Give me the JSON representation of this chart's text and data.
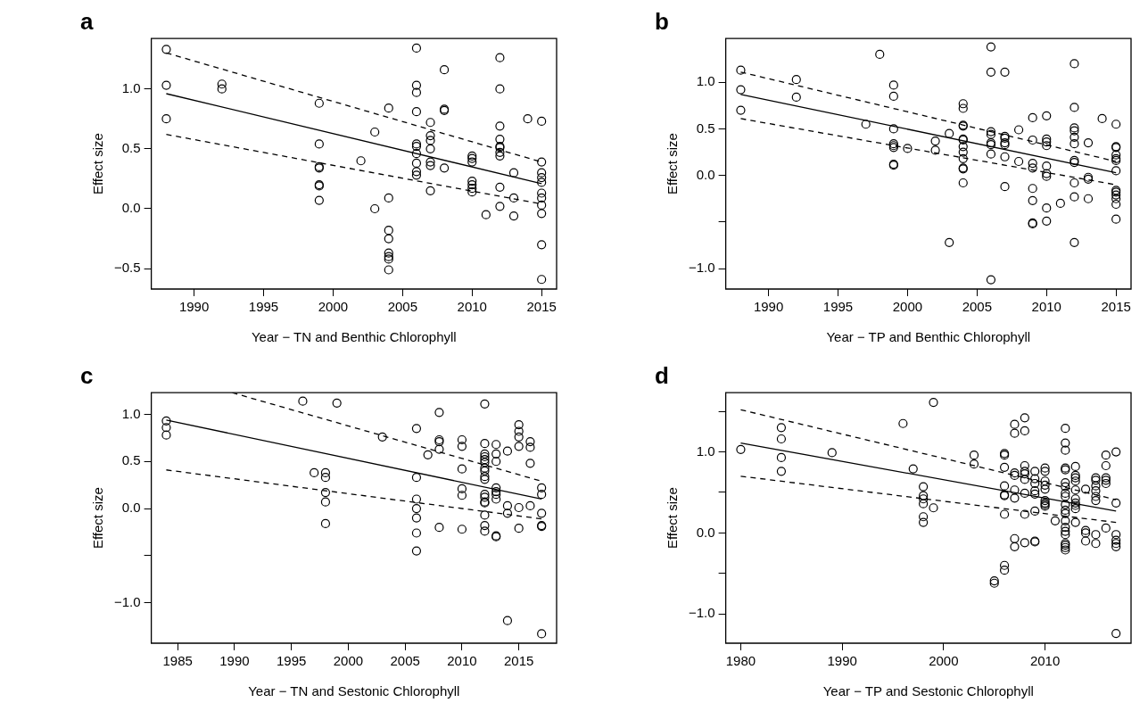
{
  "chart_data": [
    {
      "type": "scatter",
      "title": "a",
      "xlabel": "Year − TN and Benthic Chlorophyll",
      "ylabel": "Effect size",
      "xlim": [
        1986.92,
        2016.08
      ],
      "ylim": [
        -0.67,
        1.42
      ],
      "xticks": [
        1990,
        1995,
        2000,
        2005,
        2010,
        2015
      ],
      "yticks": [
        {
          "value": -0.5,
          "label": "−0.5"
        },
        {
          "value": 0,
          "label": "0.0"
        },
        {
          "value": 0.5,
          "label": "0.5"
        },
        {
          "value": 1,
          "label": "1.0"
        }
      ],
      "grid": false,
      "legend": false,
      "marker": "circle",
      "series": [
        {
          "color": "#000000",
          "x": [
            1988,
            1988,
            1988,
            1992,
            1992,
            1999,
            1999,
            1999,
            1999,
            1999,
            1999,
            1999,
            2002,
            2003,
            2003,
            2004,
            2004,
            2004,
            2004,
            2004,
            2004,
            2004,
            2004,
            2006,
            2006,
            2006,
            2006,
            2006,
            2006,
            2006,
            2006,
            2006,
            2006,
            2007,
            2007,
            2007,
            2007,
            2007,
            2007,
            2007,
            2008,
            2008,
            2008,
            2008,
            2010,
            2010,
            2010,
            2010,
            2010,
            2010,
            2010,
            2011,
            2012,
            2012,
            2012,
            2012,
            2012,
            2012,
            2012,
            2012,
            2012,
            2012,
            2013,
            2013,
            2013,
            2014,
            2015,
            2015,
            2015,
            2015,
            2015,
            2015,
            2015,
            2015,
            2015,
            2015,
            2015
          ],
          "values": [
            1.33,
            1.03,
            0.75,
            1.04,
            1.0,
            0.88,
            0.54,
            0.35,
            0.34,
            0.2,
            0.19,
            0.07,
            0.4,
            0.64,
            0.0,
            0.84,
            0.09,
            -0.18,
            -0.25,
            -0.37,
            -0.4,
            -0.42,
            -0.51,
            1.34,
            1.03,
            0.97,
            0.81,
            0.54,
            0.52,
            0.46,
            0.38,
            0.31,
            0.28,
            0.72,
            0.61,
            0.57,
            0.5,
            0.39,
            0.36,
            0.15,
            1.16,
            0.83,
            0.82,
            0.34,
            0.44,
            0.42,
            0.39,
            0.23,
            0.2,
            0.17,
            0.14,
            -0.05,
            1.26,
            1.0,
            0.69,
            0.58,
            0.52,
            0.51,
            0.47,
            0.44,
            0.18,
            0.02,
            0.3,
            0.09,
            -0.06,
            0.75,
            0.73,
            0.39,
            0.3,
            0.26,
            0.22,
            0.13,
            0.09,
            0.03,
            -0.04,
            -0.3,
            -0.59
          ]
        },
        {
          "type": "line",
          "color": "#000000",
          "line_style": "solid",
          "marker": "none",
          "x": [
            1988,
            2015
          ],
          "values": [
            0.96,
            0.21
          ]
        },
        {
          "type": "line",
          "color": "#000000",
          "line_style": "dashed",
          "marker": "none",
          "x": [
            1988,
            2015
          ],
          "values": [
            1.3,
            0.39
          ]
        },
        {
          "type": "line",
          "color": "#000000",
          "line_style": "dashed",
          "marker": "none",
          "x": [
            1988,
            2015
          ],
          "values": [
            0.62,
            0.04
          ]
        }
      ]
    },
    {
      "type": "scatter",
      "title": "b",
      "xlabel": "Year − TP and Benthic Chlorophyll",
      "ylabel": "Effect size",
      "xlim": [
        1986.92,
        2016.08
      ],
      "ylim": [
        -1.22,
        1.47
      ],
      "xticks": [
        1990,
        1995,
        2000,
        2005,
        2010,
        2015
      ],
      "yticks": [
        {
          "value": -1,
          "label": "−1.0"
        },
        {
          "value": -0.5,
          "label": null
        },
        {
          "value": 0,
          "label": "0.0"
        },
        {
          "value": 0.5,
          "label": "0.5"
        },
        {
          "value": 1,
          "label": "1.0"
        }
      ],
      "grid": false,
      "legend": false,
      "marker": "circle",
      "series": [
        {
          "color": "#000000",
          "x": [
            1988,
            1988,
            1988,
            1992,
            1992,
            1997,
            1998,
            1999,
            1999,
            1999,
            1999,
            1999,
            1999,
            1999,
            1999,
            2000,
            2002,
            2002,
            2003,
            2003,
            2004,
            2004,
            2004,
            2004,
            2004,
            2004,
            2004,
            2004,
            2004,
            2004,
            2004,
            2004,
            2006,
            2006,
            2006,
            2006,
            2006,
            2006,
            2006,
            2006,
            2007,
            2007,
            2007,
            2007,
            2007,
            2007,
            2007,
            2008,
            2008,
            2009,
            2009,
            2009,
            2009,
            2009,
            2009,
            2009,
            2009,
            2010,
            2010,
            2010,
            2010,
            2010,
            2010,
            2010,
            2010,
            2010,
            2011,
            2012,
            2012,
            2012,
            2012,
            2012,
            2012,
            2012,
            2012,
            2012,
            2012,
            2012,
            2013,
            2013,
            2013,
            2013,
            2014,
            2015,
            2015,
            2015,
            2015,
            2015,
            2015,
            2015,
            2015,
            2015,
            2015,
            2015,
            2015,
            2015
          ],
          "values": [
            1.13,
            0.92,
            0.7,
            1.03,
            0.84,
            0.55,
            1.3,
            0.97,
            0.85,
            0.5,
            0.34,
            0.32,
            0.3,
            0.12,
            0.11,
            0.29,
            0.37,
            0.27,
            0.45,
            -0.72,
            0.77,
            0.72,
            0.54,
            0.53,
            0.39,
            0.38,
            0.31,
            0.25,
            0.18,
            0.08,
            0.07,
            -0.08,
            1.38,
            1.11,
            0.47,
            0.44,
            0.35,
            0.33,
            0.23,
            -1.12,
            1.11,
            0.42,
            0.4,
            0.35,
            0.33,
            0.2,
            -0.12,
            0.49,
            0.15,
            0.62,
            0.38,
            0.13,
            0.08,
            -0.14,
            -0.27,
            -0.51,
            -0.52,
            0.64,
            0.39,
            0.36,
            0.32,
            0.1,
            0.02,
            -0.01,
            -0.35,
            -0.49,
            -0.3,
            1.2,
            0.73,
            0.51,
            0.48,
            0.41,
            0.34,
            0.16,
            0.14,
            -0.08,
            -0.23,
            -0.72,
            0.35,
            -0.02,
            -0.04,
            -0.25,
            0.61,
            0.55,
            0.31,
            0.3,
            0.22,
            0.18,
            0.16,
            0.05,
            -0.16,
            -0.18,
            -0.21,
            -0.25,
            -0.31,
            -0.47
          ]
        },
        {
          "type": "line",
          "color": "#000000",
          "line_style": "solid",
          "marker": "none",
          "x": [
            1988,
            2015
          ],
          "values": [
            0.87,
            0.03
          ]
        },
        {
          "type": "line",
          "color": "#000000",
          "line_style": "dashed",
          "marker": "none",
          "x": [
            1988,
            2015
          ],
          "values": [
            1.11,
            0.15
          ]
        },
        {
          "type": "line",
          "color": "#000000",
          "line_style": "dashed",
          "marker": "none",
          "x": [
            1988,
            2015
          ],
          "values": [
            0.61,
            -0.1
          ]
        }
      ]
    },
    {
      "type": "scatter",
      "title": "c",
      "xlabel": "Year − TN and Sestonic Chlorophyll",
      "ylabel": "Effect size",
      "xlim": [
        1982.68,
        2018.32
      ],
      "ylim": [
        -1.43,
        1.23
      ],
      "xticks": [
        1985,
        1990,
        1995,
        2000,
        2005,
        2010,
        2015
      ],
      "yticks": [
        {
          "value": -1,
          "label": "−1.0"
        },
        {
          "value": -0.5,
          "label": null
        },
        {
          "value": 0,
          "label": "0.0"
        },
        {
          "value": 0.5,
          "label": "0.5"
        },
        {
          "value": 1,
          "label": "1.0"
        }
      ],
      "grid": false,
      "legend": false,
      "marker": "circle",
      "series": [
        {
          "color": "#000000",
          "x": [
            1984,
            1984,
            1984,
            1996,
            1997,
            1998,
            1998,
            1998,
            1998,
            1998,
            1999,
            2003,
            2006,
            2006,
            2006,
            2006,
            2006,
            2006,
            2006,
            2007,
            2008,
            2008,
            2008,
            2008,
            2008,
            2010,
            2010,
            2010,
            2010,
            2010,
            2010,
            2012,
            2012,
            2012,
            2012,
            2012,
            2012,
            2012,
            2012,
            2012,
            2012,
            2012,
            2012,
            2012,
            2012,
            2012,
            2012,
            2012,
            2013,
            2013,
            2013,
            2013,
            2013,
            2013,
            2013,
            2013,
            2013,
            2014,
            2014,
            2014,
            2014,
            2015,
            2015,
            2015,
            2015,
            2015,
            2015,
            2016,
            2016,
            2016,
            2016,
            2017,
            2017,
            2017,
            2017,
            2017,
            2017
          ],
          "values": [
            0.93,
            0.86,
            0.78,
            1.14,
            0.38,
            0.38,
            0.33,
            0.17,
            0.07,
            -0.16,
            1.12,
            0.76,
            0.85,
            0.33,
            0.1,
            0.0,
            -0.1,
            -0.26,
            -0.45,
            0.57,
            1.02,
            0.73,
            0.71,
            0.63,
            -0.2,
            0.73,
            0.66,
            0.42,
            0.21,
            0.14,
            -0.22,
            1.11,
            0.69,
            0.58,
            0.55,
            0.52,
            0.49,
            0.43,
            0.4,
            0.34,
            0.31,
            0.15,
            0.12,
            0.07,
            0.06,
            -0.07,
            -0.18,
            -0.24,
            0.68,
            0.58,
            0.5,
            0.22,
            0.18,
            0.15,
            0.1,
            -0.29,
            -0.3,
            0.61,
            0.03,
            -0.05,
            -1.19,
            0.89,
            0.82,
            0.76,
            0.66,
            0.01,
            -0.21,
            0.71,
            0.65,
            0.48,
            0.03,
            0.22,
            0.15,
            -0.05,
            -0.18,
            -0.19,
            -1.33
          ]
        },
        {
          "type": "line",
          "color": "#000000",
          "line_style": "solid",
          "marker": "none",
          "x": [
            1984,
            2017
          ],
          "values": [
            0.94,
            0.1
          ]
        },
        {
          "type": "line",
          "color": "#000000",
          "line_style": "dashed",
          "marker": "none",
          "x": [
            1989.8,
            2017
          ],
          "values": [
            1.23,
            0.29
          ]
        },
        {
          "type": "line",
          "color": "#000000",
          "line_style": "dashed",
          "marker": "none",
          "x": [
            1984,
            2017
          ],
          "values": [
            0.41,
            -0.11
          ]
        }
      ]
    },
    {
      "type": "scatter",
      "title": "d",
      "xlabel": "Year − TP and Sestonic Chlorophyll",
      "ylabel": "Effect size",
      "xlim": [
        1978.52,
        2018.48
      ],
      "ylim": [
        -1.36,
        1.73
      ],
      "xticks": [
        1980,
        1990,
        2000,
        2010
      ],
      "yticks": [
        {
          "value": -1,
          "label": "−1.0"
        },
        {
          "value": -0.5,
          "label": null
        },
        {
          "value": 0,
          "label": "0.0"
        },
        {
          "value": 0.5,
          "label": null
        },
        {
          "value": 1,
          "label": "1.0"
        },
        {
          "value": 1.5,
          "label": null
        }
      ],
      "grid": false,
      "legend": false,
      "marker": "circle",
      "series": [
        {
          "color": "#000000",
          "x": [
            1980,
            1984,
            1984,
            1984,
            1984,
            1989,
            1996,
            1997,
            1998,
            1998,
            1998,
            1998,
            1998,
            1998,
            1999,
            1999,
            2003,
            2003,
            2005,
            2005,
            2006,
            2006,
            2006,
            2006,
            2006,
            2006,
            2006,
            2006,
            2006,
            2007,
            2007,
            2007,
            2007,
            2007,
            2007,
            2007,
            2007,
            2008,
            2008,
            2008,
            2008,
            2008,
            2008,
            2008,
            2008,
            2008,
            2009,
            2009,
            2009,
            2009,
            2009,
            2009,
            2009,
            2009,
            2010,
            2010,
            2010,
            2010,
            2010,
            2010,
            2010,
            2010,
            2010,
            2011,
            2012,
            2012,
            2012,
            2012,
            2012,
            2012,
            2012,
            2012,
            2012,
            2012,
            2012,
            2012,
            2012,
            2012,
            2012,
            2012,
            2012,
            2012,
            2012,
            2012,
            2013,
            2013,
            2013,
            2013,
            2013,
            2013,
            2013,
            2013,
            2013,
            2013,
            2014,
            2014,
            2014,
            2014,
            2015,
            2015,
            2015,
            2015,
            2015,
            2015,
            2015,
            2015,
            2016,
            2016,
            2016,
            2016,
            2016,
            2016,
            2017,
            2017,
            2017,
            2017,
            2017,
            2017,
            2017
          ],
          "values": [
            1.03,
            1.3,
            1.16,
            0.93,
            0.76,
            0.99,
            1.35,
            0.79,
            0.57,
            0.46,
            0.42,
            0.36,
            0.2,
            0.13,
            1.61,
            0.31,
            0.96,
            0.85,
            -0.59,
            -0.62,
            0.98,
            0.96,
            0.81,
            0.58,
            0.47,
            0.46,
            0.23,
            -0.4,
            -0.46,
            1.34,
            1.23,
            0.74,
            0.71,
            0.53,
            0.43,
            -0.07,
            -0.17,
            1.42,
            1.26,
            0.83,
            0.76,
            0.73,
            0.66,
            0.49,
            0.23,
            -0.12,
            0.76,
            0.67,
            0.61,
            0.52,
            0.48,
            0.27,
            -0.1,
            -0.11,
            0.8,
            0.76,
            0.64,
            0.59,
            0.54,
            0.4,
            0.37,
            0.35,
            0.33,
            0.15,
            1.29,
            1.11,
            1.02,
            0.8,
            0.78,
            0.62,
            0.57,
            0.49,
            0.45,
            0.35,
            0.28,
            0.24,
            0.15,
            0.07,
            0.02,
            -0.02,
            -0.13,
            -0.15,
            -0.18,
            -0.21,
            0.82,
            0.71,
            0.68,
            0.64,
            0.53,
            0.42,
            0.37,
            0.34,
            0.3,
            0.13,
            0.54,
            0.03,
            0.0,
            -0.1,
            0.68,
            0.65,
            0.58,
            0.52,
            0.45,
            0.4,
            -0.02,
            -0.13,
            0.96,
            0.83,
            0.68,
            0.65,
            0.61,
            0.06,
            1.0,
            0.37,
            -0.02,
            -0.09,
            -0.13,
            -0.17,
            -1.24
          ]
        },
        {
          "type": "line",
          "color": "#000000",
          "line_style": "solid",
          "marker": "none",
          "x": [
            1980,
            2017
          ],
          "values": [
            1.11,
            0.27
          ]
        },
        {
          "type": "line",
          "color": "#000000",
          "line_style": "dashed",
          "marker": "none",
          "x": [
            1980,
            2017
          ],
          "values": [
            1.52,
            0.41
          ]
        },
        {
          "type": "line",
          "color": "#000000",
          "line_style": "dashed",
          "marker": "none",
          "x": [
            1980,
            2017
          ],
          "values": [
            0.7,
            0.13
          ]
        }
      ]
    }
  ]
}
